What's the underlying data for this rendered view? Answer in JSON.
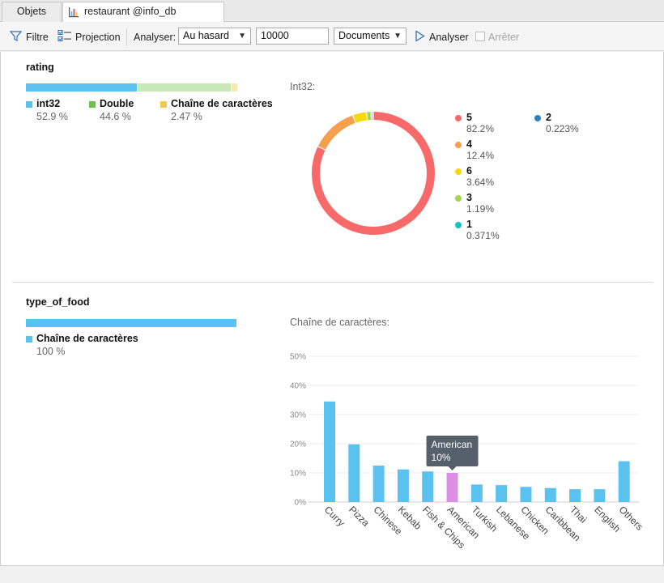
{
  "tabs": [
    {
      "label": "Objets"
    },
    {
      "label": "restaurant @info_db (Mongd..."
    }
  ],
  "toolbar": {
    "filter_label": "Filtre",
    "projection_label": "Projection",
    "analyser_label": "Analyser:",
    "sampling_value": "Au hasard",
    "count_value": "10000",
    "scope_value": "Documents",
    "run_label": "Analyser",
    "stop_label": "Arrêter"
  },
  "colors": {
    "int32": "#5bc2f0",
    "double": "#c9e8b8",
    "string": "#f7e7b1",
    "bar": "#5bc2f0",
    "bar_highlight": "#dc8fe0",
    "tooltip_bg": "#56606a"
  },
  "sections": [
    {
      "field": "rating",
      "types": [
        {
          "name": "int32",
          "pct": "52.9 %",
          "fraction": 0.529,
          "swatch": "#5bc2f0"
        },
        {
          "name": "Double",
          "pct": "44.6 %",
          "fraction": 0.446,
          "swatch": "#6cc24a"
        },
        {
          "name": "Chaîne de caractères",
          "pct": "2.47 %",
          "fraction": 0.0247,
          "swatch": "#f2c94c"
        }
      ],
      "chart_caption": "Int32:"
    },
    {
      "field": "type_of_food",
      "types": [
        {
          "name": "Chaîne de caractères",
          "pct": "100 %",
          "fraction": 1.0,
          "swatch": "#5bc2f0"
        }
      ],
      "chart_caption": "Chaîne de caractères:"
    }
  ],
  "chart_data": [
    {
      "type": "pie",
      "style": "donut",
      "title": "Int32:",
      "slices": [
        {
          "label": "5",
          "value": 82.2,
          "display": "82.2%",
          "color": "#f86a6a"
        },
        {
          "label": "4",
          "value": 12.4,
          "display": "12.4%",
          "color": "#f5a04c"
        },
        {
          "label": "6",
          "value": 3.64,
          "display": "3.64%",
          "color": "#f8d80d"
        },
        {
          "label": "3",
          "value": 1.19,
          "display": "1.19%",
          "color": "#a6d64b"
        },
        {
          "label": "1",
          "value": 0.371,
          "display": "0.371%",
          "color": "#12c3c3"
        },
        {
          "label": "2",
          "value": 0.223,
          "display": "0.223%",
          "color": "#2f80c6"
        }
      ]
    },
    {
      "type": "bar",
      "title": "Chaîne de caractères:",
      "categories": [
        "Curry",
        "Pizza",
        "Chinese",
        "Kebab",
        "Fish & Chips",
        "American",
        "Turkish",
        "Lebanese",
        "Chicken",
        "Caribbean",
        "Thai",
        "English",
        "Others"
      ],
      "values": [
        34.5,
        19.8,
        12.5,
        11.2,
        10.5,
        10.0,
        6.0,
        5.8,
        5.2,
        4.8,
        4.4,
        4.4,
        14.0
      ],
      "ylim": [
        0,
        50
      ],
      "yticks": [
        "0%",
        "10%",
        "20%",
        "30%",
        "40%",
        "50%"
      ],
      "grid": true,
      "highlight_index": 5,
      "tooltip": {
        "label": "American",
        "value": "10%"
      }
    }
  ]
}
